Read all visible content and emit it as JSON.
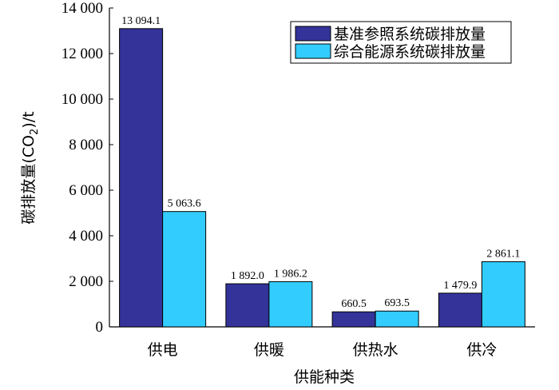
{
  "chart_data": {
    "type": "bar",
    "categories": [
      "供电",
      "供暖",
      "供热水",
      "供冷"
    ],
    "series": [
      {
        "name": "基准参照系统碳排放量",
        "values": [
          13094.1,
          1892.0,
          660.5,
          1479.9
        ],
        "labels": [
          "13 094.1",
          "1 892.0",
          "660.5",
          "1 479.9"
        ],
        "color": "#333399"
      },
      {
        "name": "综合能源系统碳排放量",
        "values": [
          5063.6,
          1986.2,
          693.5,
          2861.1
        ],
        "labels": [
          "5 063.6",
          "1 986.2",
          "693.5",
          "2 861.1"
        ],
        "color": "#33ccff"
      }
    ],
    "xlabel": "供能种类",
    "ylabel_main": "碳排放量(CO",
    "ylabel_sub": "2",
    "ylabel_end": ")/t",
    "ylim": [
      0,
      14000
    ],
    "yticks": [
      0,
      2000,
      4000,
      6000,
      8000,
      10000,
      12000,
      14000
    ],
    "ytick_labels": [
      "0",
      "2 000",
      "4 000",
      "6 000",
      "8 000",
      "10 000",
      "12 000",
      "14 000"
    ],
    "grid": false,
    "legend_position": "top-right"
  }
}
